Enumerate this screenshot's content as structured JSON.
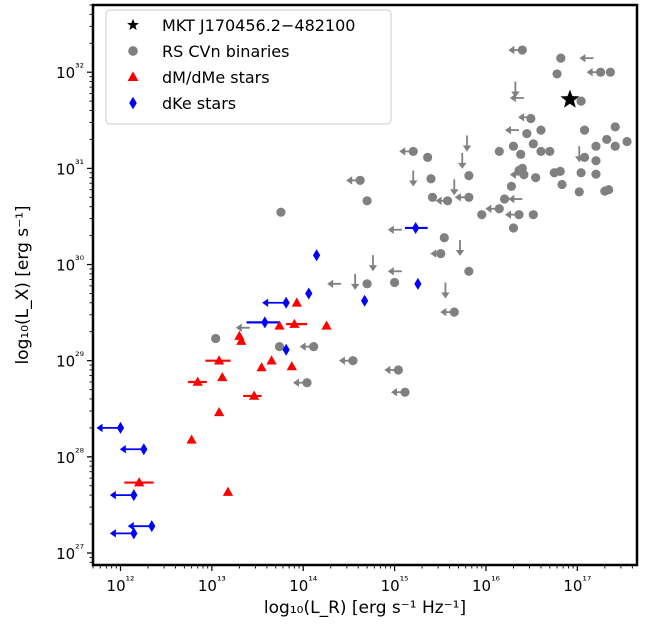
{
  "chart_data": {
    "type": "scatter",
    "title": "",
    "xlabel": "log₁₀(L_R) [erg s⁻¹ Hz⁻¹]",
    "ylabel": "log₁₀(L_X) [erg s⁻¹]",
    "x_scale": "log",
    "y_scale": "log",
    "xlim": [
      500000000000.0,
      4.5e+17
    ],
    "ylim": [
      7.5e+26,
      5e+32
    ],
    "x_ticks": [
      "10¹²",
      "10¹³",
      "10¹⁴",
      "10¹⁵",
      "10¹⁶",
      "10¹⁷"
    ],
    "y_ticks": [
      "10²⁷",
      "10²⁸",
      "10²⁹",
      "10³⁰",
      "10³¹",
      "10³²"
    ],
    "legend_position": "top-left",
    "series": [
      {
        "name": "MKT J170456.2−482100",
        "marker": "star",
        "color": "#000000",
        "points": [
          {
            "x": 8.3e+16,
            "y": 5.2e+31
          }
        ]
      },
      {
        "name": "RS CVn binaries",
        "marker": "circle",
        "color": "#808080",
        "points": [
          {
            "x": 1.1e+17,
            "y": 5e+31
          },
          {
            "x": 1.8e+17,
            "y": 1e+32
          },
          {
            "x": 2.3e+17,
            "y": 1e+32
          },
          {
            "x": 6e+16,
            "y": 9.6e+31
          },
          {
            "x": 6.6e+16,
            "y": 1.4e+32
          },
          {
            "x": 2.5e+16,
            "y": 1.7e+32
          },
          {
            "x": 1.2e+17,
            "y": 2.5e+31
          },
          {
            "x": 2.6e+17,
            "y": 2.7e+31
          },
          {
            "x": 2.1e+17,
            "y": 2e+31
          },
          {
            "x": 2.6e+17,
            "y": 1.7e+31
          },
          {
            "x": 3.5e+17,
            "y": 1.9e+31
          },
          {
            "x": 1.6e+17,
            "y": 1.7e+31
          },
          {
            "x": 1.6e+17,
            "y": 1.2e+31
          },
          {
            "x": 1.2e+17,
            "y": 1.3e+31
          },
          {
            "x": 1.1e+17,
            "y": 9e+30
          },
          {
            "x": 1.6e+17,
            "y": 8.7e+30
          },
          {
            "x": 2.2e+17,
            "y": 6e+30
          },
          {
            "x": 2e+17,
            "y": 5.8e+30
          },
          {
            "x": 1.05e+17,
            "y": 5.7e+30
          },
          {
            "x": 6.5e+16,
            "y": 9.3e+30
          },
          {
            "x": 5.6e+16,
            "y": 9e+30
          },
          {
            "x": 6.8e+16,
            "y": 6.8e+30
          },
          {
            "x": 5e+16,
            "y": 1.5e+31
          },
          {
            "x": 4e+16,
            "y": 2.5e+31
          },
          {
            "x": 3.1e+16,
            "y": 3.3e+31
          },
          {
            "x": 2.8e+16,
            "y": 2.3e+31
          },
          {
            "x": 2e+16,
            "y": 1.7e+31
          },
          {
            "x": 1.4e+16,
            "y": 1.5e+31
          },
          {
            "x": 2.4e+16,
            "y": 1.4e+31
          },
          {
            "x": 3.3e+16,
            "y": 1.8e+31
          },
          {
            "x": 4e+16,
            "y": 1.5e+31
          },
          {
            "x": 2.6e+16,
            "y": 8.6e+30
          },
          {
            "x": 2.5e+16,
            "y": 1e+31
          },
          {
            "x": 3.5e+16,
            "y": 8e+30
          },
          {
            "x": 1.9e+16,
            "y": 6.5e+30
          },
          {
            "x": 1.4e+16,
            "y": 3.8e+30
          },
          {
            "x": 1.6e+16,
            "y": 4.8e+30
          },
          {
            "x": 2.3e+16,
            "y": 3.3e+30
          },
          {
            "x": 3.3e+16,
            "y": 3.3e+30
          },
          {
            "x": 2e+16,
            "y": 2.4e+30
          },
          {
            "x": 9000000000000000.0,
            "y": 3.3e+30
          },
          {
            "x": 6500000000000000.0,
            "y": 5e+30
          },
          {
            "x": 6500000000000000.0,
            "y": 8.4e+30
          },
          {
            "x": 2.3e+16,
            "y": 9.5e+30
          },
          {
            "x": 2300000000000000.0,
            "y": 1.3e+31
          },
          {
            "x": 1600000000000000.0,
            "y": 1.5e+31
          },
          {
            "x": 2600000000000000.0,
            "y": 5e+30
          },
          {
            "x": 3800000000000000.0,
            "y": 4.6e+30
          },
          {
            "x": 2500000000000000.0,
            "y": 7.8e+30
          },
          {
            "x": 420000000000000.0,
            "y": 7.5e+30
          },
          {
            "x": 500000000000000.0,
            "y": 4.6e+30
          },
          {
            "x": 6500000000000000.0,
            "y": 8.5e+29
          },
          {
            "x": 57000000000000.0,
            "y": 3.5e+30
          },
          {
            "x": 11000000000000.0,
            "y": 1.7e+29
          },
          {
            "x": 55000000000000.0,
            "y": 1.4e+29
          },
          {
            "x": 130000000000000.0,
            "y": 1.4e+29
          },
          {
            "x": 350000000000000.0,
            "y": 1e+29
          },
          {
            "x": 1100000000000000.0,
            "y": 8e+28
          },
          {
            "x": 1300000000000000.0,
            "y": 4.7e+28
          },
          {
            "x": 110000000000000.0,
            "y": 5.9e+28
          },
          {
            "x": 4500000000000000.0,
            "y": 3.2e+29
          },
          {
            "x": 1000000000000000.0,
            "y": 6.5e+29
          },
          {
            "x": 500000000000000.0,
            "y": 6.3e+29
          },
          {
            "x": 3500000000000000.0,
            "y": 1.9e+30
          },
          {
            "x": 3200000000000000.0,
            "y": 1.3e+30
          }
        ]
      },
      {
        "name": "dM/dMe stars",
        "marker": "triangle",
        "color": "#ff0000",
        "points": [
          {
            "x": 1600000000000.0,
            "y": 5.4e+27
          },
          {
            "x": 15000000000000.0,
            "y": 4.3e+27
          },
          {
            "x": 6000000000000.0,
            "y": 1.5e+28
          },
          {
            "x": 12000000000000.0,
            "y": 2.9e+28
          },
          {
            "x": 13000000000000.0,
            "y": 6.7e+28
          },
          {
            "x": 7000000000000.0,
            "y": 6e+28
          },
          {
            "x": 12000000000000.0,
            "y": 1e+29
          },
          {
            "x": 21000000000000.0,
            "y": 1.6e+29
          },
          {
            "x": 20000000000000.0,
            "y": 1.8e+29
          },
          {
            "x": 29000000000000.0,
            "y": 4.3e+28
          },
          {
            "x": 35000000000000.0,
            "y": 8.5e+28
          },
          {
            "x": 45000000000000.0,
            "y": 1e+29
          },
          {
            "x": 55000000000000.0,
            "y": 2.3e+29
          },
          {
            "x": 75000000000000.0,
            "y": 8.7e+28
          },
          {
            "x": 80000000000000.0,
            "y": 2.4e+29
          },
          {
            "x": 180000000000000.0,
            "y": 2.3e+29
          },
          {
            "x": 85000000000000.0,
            "y": 4e+29
          }
        ]
      },
      {
        "name": "dKe stars",
        "marker": "diamond",
        "color": "#0000ff",
        "points": [
          {
            "x": 1000000000000.0,
            "y": 2e+28
          },
          {
            "x": 1800000000000.0,
            "y": 1.2e+28
          },
          {
            "x": 1400000000000.0,
            "y": 4e+27
          },
          {
            "x": 1400000000000.0,
            "y": 1.6e+27
          },
          {
            "x": 2200000000000.0,
            "y": 1.9e+27
          },
          {
            "x": 38000000000000.0,
            "y": 2.5e+29
          },
          {
            "x": 65000000000000.0,
            "y": 1.3e+29
          },
          {
            "x": 65000000000000.0,
            "y": 4e+29
          },
          {
            "x": 115000000000000.0,
            "y": 5e+29
          },
          {
            "x": 140000000000000.0,
            "y": 1.25e+30
          },
          {
            "x": 470000000000000.0,
            "y": 4.2e+29
          },
          {
            "x": 1700000000000000.0,
            "y": 2.4e+30
          },
          {
            "x": 1800000000000000.0,
            "y": 6.3e+29
          }
        ]
      }
    ],
    "upper_limits": {
      "x_arrows": [
        {
          "series": "RS CVn binaries",
          "x": 2.5e+16,
          "y": 1.7e+32
        },
        {
          "series": "RS CVn binaries",
          "x": 1.8e+17,
          "y": 1e+32
        },
        {
          "series": "RS CVn binaries",
          "x": 1.5e+17,
          "y": 1.4e+32
        },
        {
          "series": "RS CVn binaries",
          "x": 2.6e+16,
          "y": 5.4e+31
        },
        {
          "series": "RS CVn binaries",
          "x": 2.3e+16,
          "y": 2.5e+31
        },
        {
          "series": "RS CVn binaries",
          "x": 3.2e+16,
          "y": 3.4e+31
        },
        {
          "series": "RS CVn binaries",
          "x": 2.6e+16,
          "y": 8.6e+30
        },
        {
          "series": "RS CVn binaries",
          "x": 2.5e+16,
          "y": 4.8e+30
        },
        {
          "series": "RS CVn binaries",
          "x": 1.4e+16,
          "y": 3.8e+30
        },
        {
          "series": "RS CVn binaries",
          "x": 2.3e+16,
          "y": 3.3e+30
        },
        {
          "series": "RS CVn binaries",
          "x": 6500000000000000.0,
          "y": 5e+30
        },
        {
          "series": "RS CVn binaries",
          "x": 4000000000000000.0,
          "y": 4.6e+30
        },
        {
          "series": "RS CVn binaries",
          "x": 1600000000000000.0,
          "y": 1.5e+31
        },
        {
          "series": "RS CVn binaries",
          "x": 420000000000000.0,
          "y": 7.5e+30
        },
        {
          "series": "RS CVn binaries",
          "x": 1200000000000000.0,
          "y": 2.3e+30
        },
        {
          "series": "RS CVn binaries",
          "x": 1200000000000000.0,
          "y": 8.5e+29
        },
        {
          "series": "RS CVn binaries",
          "x": 3500000000000000.0,
          "y": 1.3e+30
        },
        {
          "series": "RS CVn binaries",
          "x": 260000000000000.0,
          "y": 6.3e+29
        },
        {
          "series": "RS CVn binaries",
          "x": 350000000000000.0,
          "y": 1e+29
        },
        {
          "series": "RS CVn binaries",
          "x": 1100000000000000.0,
          "y": 8e+28
        },
        {
          "series": "RS CVn binaries",
          "x": 1300000000000000.0,
          "y": 4.7e+28
        },
        {
          "series": "RS CVn binaries",
          "x": 110000000000000.0,
          "y": 5.9e+28
        },
        {
          "series": "RS CVn binaries",
          "x": 130000000000000.0,
          "y": 1.4e+29
        },
        {
          "series": "RS CVn binaries",
          "x": 4500000000000000.0,
          "y": 3.2e+29
        },
        {
          "series": "RS CVn binaries",
          "x": 26000000000000.0,
          "y": 2.2e+29
        },
        {
          "series": "dKe stars",
          "x": 1000000000000.0,
          "y": 2e+28
        },
        {
          "series": "dKe stars",
          "x": 1800000000000.0,
          "y": 1.2e+28
        },
        {
          "series": "dKe stars",
          "x": 1400000000000.0,
          "y": 4e+27
        },
        {
          "series": "dKe stars",
          "x": 1400000000000.0,
          "y": 1.6e+27
        },
        {
          "series": "dKe stars",
          "x": 2200000000000.0,
          "y": 1.9e+27
        },
        {
          "series": "dKe stars",
          "x": 65000000000000.0,
          "y": 4e+29
        }
      ],
      "y_arrows": [
        {
          "series": "RS CVn binaries",
          "x": 2.1e+16,
          "y": 8e+31
        },
        {
          "series": "RS CVn binaries",
          "x": 1.05e+17,
          "y": 1.7e+31
        },
        {
          "series": "RS CVn binaries",
          "x": 5500000000000000.0,
          "y": 1.45e+31
        },
        {
          "series": "RS CVn binaries",
          "x": 6200000000000000.0,
          "y": 2.2e+31
        },
        {
          "series": "RS CVn binaries",
          "x": 1600000000000000.0,
          "y": 9.5e+30
        },
        {
          "series": "RS CVn binaries",
          "x": 580000000000000.0,
          "y": 1.25e+30
        },
        {
          "series": "RS CVn binaries",
          "x": 370000000000000.0,
          "y": 8e+29
        },
        {
          "series": "RS CVn binaries",
          "x": 4500000000000000.0,
          "y": 7.7e+30
        },
        {
          "series": "RS CVn binaries",
          "x": 3600000000000000.0,
          "y": 6.5e+29
        },
        {
          "series": "RS CVn binaries",
          "x": 5200000000000000.0,
          "y": 1.8e+30
        }
      ]
    },
    "error_bars": [
      {
        "series": "dM/dMe stars",
        "x": 1600000000000.0,
        "y": 5.4e+27,
        "xerr_low": 1100000000000.0,
        "xerr_high": 2300000000000.0
      },
      {
        "series": "dM/dMe stars",
        "x": 12000000000000.0,
        "y": 1e+29,
        "xerr_low": 8500000000000.0,
        "xerr_high": 16000000000000.0
      },
      {
        "series": "dM/dMe stars",
        "x": 7000000000000.0,
        "y": 6e+28,
        "xerr_low": 5500000000000.0,
        "xerr_high": 8800000000000.0
      },
      {
        "series": "dM/dMe stars",
        "x": 29000000000000.0,
        "y": 4.3e+28,
        "xerr_low": 22000000000000.0,
        "xerr_high": 35000000000000.0
      },
      {
        "series": "dM/dMe stars",
        "x": 80000000000000.0,
        "y": 2.4e+29,
        "xerr_low": 65000000000000.0,
        "xerr_high": 110000000000000.0
      },
      {
        "series": "dKe stars",
        "x": 38000000000000.0,
        "y": 2.5e+29,
        "xerr_low": 24000000000000.0,
        "xerr_high": 55000000000000.0
      },
      {
        "series": "dKe stars",
        "x": 1700000000000000.0,
        "y": 2.4e+30,
        "xerr_low": 1300000000000000.0,
        "xerr_high": 2300000000000000.0
      }
    ]
  }
}
